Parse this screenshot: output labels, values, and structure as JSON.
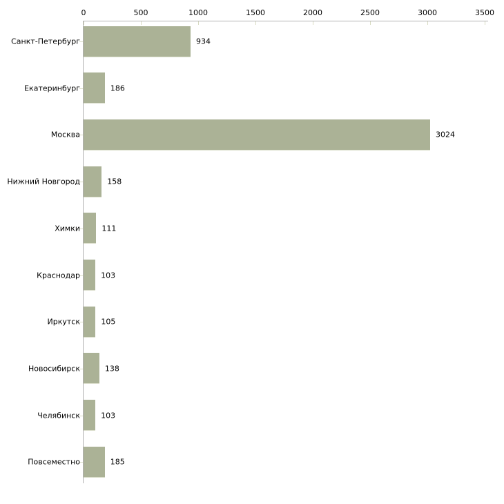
{
  "chart_data": {
    "type": "bar",
    "orientation": "horizontal",
    "title": "",
    "xlabel": "",
    "ylabel": "",
    "categories": [
      "Санкт-Петербург",
      "Екатеринбург",
      "Москва",
      "Нижний Новгород",
      "Химки",
      "Краснодар",
      "Иркутск",
      "Новосибирск",
      "Челябинск",
      "Повсеместно"
    ],
    "values": [
      934,
      186,
      3024,
      158,
      111,
      103,
      105,
      138,
      103,
      185
    ],
    "value_labels": [
      "934",
      "186",
      "3024",
      "158",
      "111",
      "103",
      "105",
      "138",
      "103",
      "185"
    ],
    "xticks": [
      "0",
      "500",
      "1000",
      "1500",
      "2000",
      "2500",
      "3000",
      "3500"
    ],
    "xtick_values": [
      0,
      500,
      1000,
      1500,
      2000,
      2500,
      3000,
      3500
    ],
    "xlim": [
      0,
      3500
    ],
    "grid": false,
    "legend": null,
    "axis_position": "top-left",
    "colors": {
      "bar": "#abb296",
      "bar_edge": "#dcdfcd",
      "axis_line": "#b0b0b0",
      "tick_mark": "#d8dbc2",
      "text": "#000000",
      "background": "#ffffff"
    }
  }
}
